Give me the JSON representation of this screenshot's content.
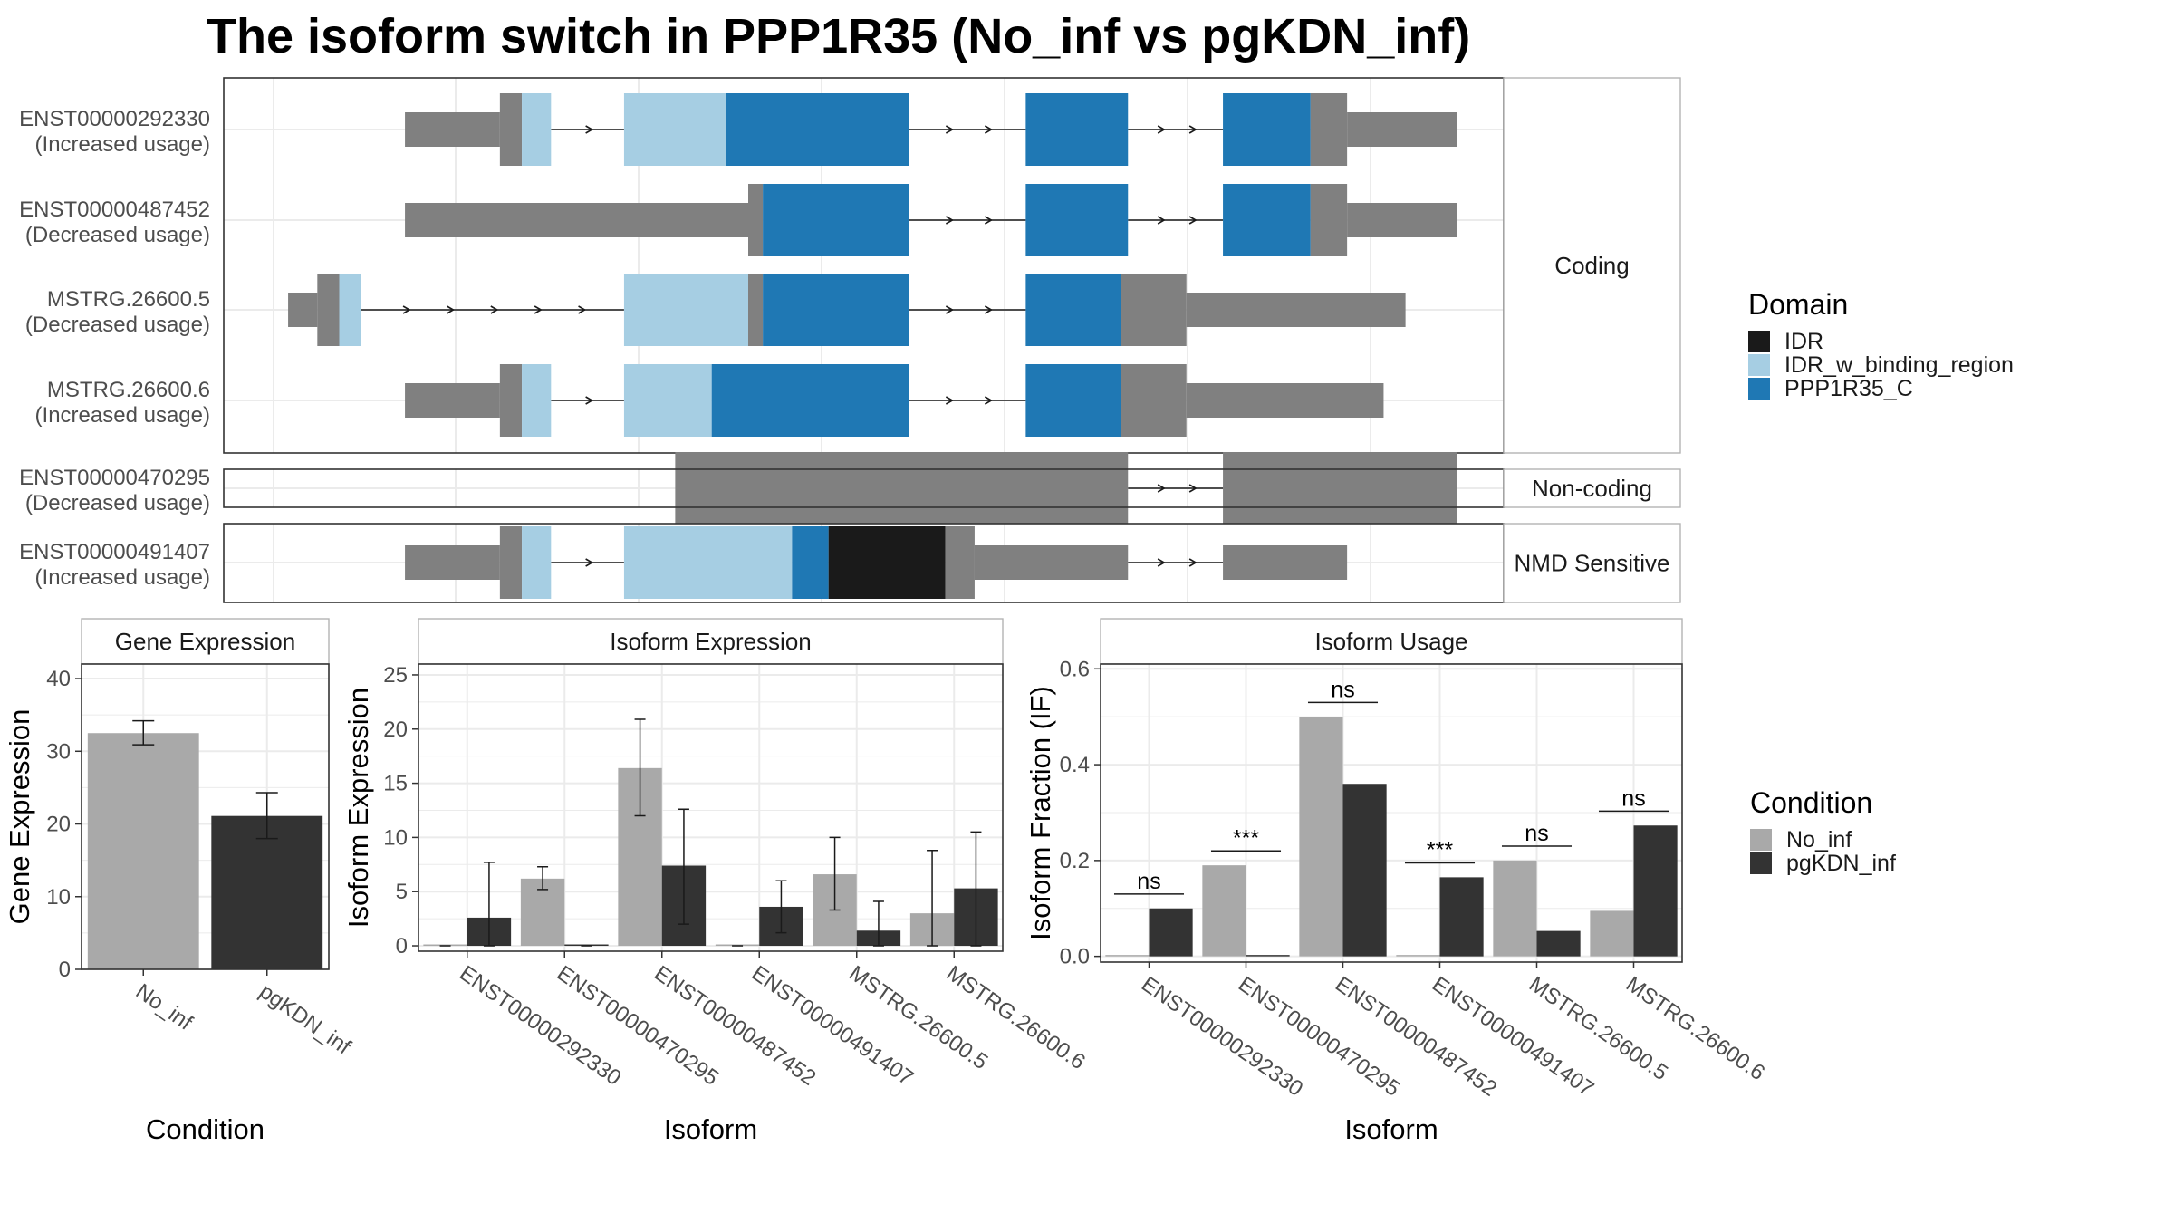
{
  "title": "The isoform switch in PPP1R35 (No_inf vs pgKDN_inf)",
  "colors": {
    "IDR": "#1a1a1a",
    "IDR_w_binding_region": "#a6cee3",
    "PPP1R35_C": "#1f78b4",
    "utr_grey": "#808080",
    "No_inf": "#a9a9a9",
    "pgKDN_inf": "#333333",
    "panel_border": "#333333",
    "grid": "#ebebeb"
  },
  "domain_legend": {
    "title": "Domain",
    "items": [
      {
        "label": "IDR",
        "color": "#1a1a1a"
      },
      {
        "label": "IDR_w_binding_region",
        "color": "#a6cee3"
      },
      {
        "label": "PPP1R35_C",
        "color": "#1f78b4"
      }
    ]
  },
  "condition_legend": {
    "title": "Condition",
    "items": [
      {
        "label": "No_inf",
        "color": "#a9a9a9"
      },
      {
        "label": "pgKDN_inf",
        "color": "#333333"
      }
    ]
  },
  "chart_data": [
    {
      "type": "gene-structure",
      "coordinate_range": [
        0,
        1000
      ],
      "groups": [
        {
          "label": "Coding",
          "transcripts": [
            {
              "id": "ENST00000292330",
              "usage": "(Increased usage)",
              "exons": [
                {
                  "start": 170,
                  "end": 370
                },
                {
                  "start": 470,
                  "end": 860
                },
                {
                  "start": 1020,
                  "end": 1160
                },
                {
                  "start": 1290,
                  "end": 1610
                }
              ],
              "segments": [
                {
                  "start": 170,
                  "end": 300,
                  "kind": "utr"
                },
                {
                  "start": 300,
                  "end": 330,
                  "kind": "cds",
                  "domain": null
                },
                {
                  "start": 330,
                  "end": 370,
                  "kind": "cds",
                  "domain": "IDR_w_binding_region"
                },
                {
                  "start": 470,
                  "end": 610,
                  "kind": "cds",
                  "domain": "IDR_w_binding_region"
                },
                {
                  "start": 610,
                  "end": 860,
                  "kind": "cds",
                  "domain": "PPP1R35_C"
                },
                {
                  "start": 1020,
                  "end": 1160,
                  "kind": "cds",
                  "domain": "PPP1R35_C"
                },
                {
                  "start": 1290,
                  "end": 1410,
                  "kind": "cds",
                  "domain": "PPP1R35_C"
                },
                {
                  "start": 1410,
                  "end": 1460,
                  "kind": "cds",
                  "domain": null
                },
                {
                  "start": 1460,
                  "end": 1610,
                  "kind": "utr"
                }
              ]
            },
            {
              "id": "ENST00000487452",
              "usage": "(Decreased usage)",
              "exons": [
                {
                  "start": 170,
                  "end": 860
                },
                {
                  "start": 1020,
                  "end": 1160
                },
                {
                  "start": 1290,
                  "end": 1610
                }
              ],
              "segments": [
                {
                  "start": 170,
                  "end": 640,
                  "kind": "utr"
                },
                {
                  "start": 640,
                  "end": 660,
                  "kind": "cds",
                  "domain": null
                },
                {
                  "start": 660,
                  "end": 860,
                  "kind": "cds",
                  "domain": "PPP1R35_C"
                },
                {
                  "start": 1020,
                  "end": 1160,
                  "kind": "cds",
                  "domain": "PPP1R35_C"
                },
                {
                  "start": 1290,
                  "end": 1410,
                  "kind": "cds",
                  "domain": "PPP1R35_C"
                },
                {
                  "start": 1410,
                  "end": 1460,
                  "kind": "cds",
                  "domain": null
                },
                {
                  "start": 1460,
                  "end": 1610,
                  "kind": "utr"
                }
              ]
            },
            {
              "id": "MSTRG.26600.5",
              "usage": "(Decreased usage)",
              "exons": [
                {
                  "start": 10,
                  "end": 110
                },
                {
                  "start": 470,
                  "end": 860
                },
                {
                  "start": 1020,
                  "end": 1540
                }
              ],
              "segments": [
                {
                  "start": 10,
                  "end": 50,
                  "kind": "utr"
                },
                {
                  "start": 50,
                  "end": 80,
                  "kind": "cds",
                  "domain": null
                },
                {
                  "start": 80,
                  "end": 110,
                  "kind": "cds",
                  "domain": "IDR_w_binding_region"
                },
                {
                  "start": 470,
                  "end": 640,
                  "kind": "cds",
                  "domain": "IDR_w_binding_region"
                },
                {
                  "start": 640,
                  "end": 660,
                  "kind": "cds",
                  "domain": null
                },
                {
                  "start": 660,
                  "end": 860,
                  "kind": "cds",
                  "domain": "PPP1R35_C"
                },
                {
                  "start": 1020,
                  "end": 1150,
                  "kind": "cds",
                  "domain": "PPP1R35_C"
                },
                {
                  "start": 1150,
                  "end": 1240,
                  "kind": "cds",
                  "domain": null
                },
                {
                  "start": 1240,
                  "end": 1540,
                  "kind": "utr"
                }
              ]
            },
            {
              "id": "MSTRG.26600.6",
              "usage": "(Increased usage)",
              "exons": [
                {
                  "start": 170,
                  "end": 370
                },
                {
                  "start": 470,
                  "end": 860
                },
                {
                  "start": 1020,
                  "end": 1510
                }
              ],
              "segments": [
                {
                  "start": 170,
                  "end": 300,
                  "kind": "utr"
                },
                {
                  "start": 300,
                  "end": 330,
                  "kind": "cds",
                  "domain": null
                },
                {
                  "start": 330,
                  "end": 370,
                  "kind": "cds",
                  "domain": "IDR_w_binding_region"
                },
                {
                  "start": 470,
                  "end": 590,
                  "kind": "cds",
                  "domain": "IDR_w_binding_region"
                },
                {
                  "start": 590,
                  "end": 860,
                  "kind": "cds",
                  "domain": "PPP1R35_C"
                },
                {
                  "start": 1020,
                  "end": 1150,
                  "kind": "cds",
                  "domain": "PPP1R35_C"
                },
                {
                  "start": 1150,
                  "end": 1240,
                  "kind": "cds",
                  "domain": null
                },
                {
                  "start": 1240,
                  "end": 1510,
                  "kind": "utr"
                }
              ]
            }
          ]
        },
        {
          "label": "Non-coding",
          "transcripts": [
            {
              "id": "ENST00000470295",
              "usage": "(Decreased usage)",
              "exons": [
                {
                  "start": 540,
                  "end": 1160
                },
                {
                  "start": 1290,
                  "end": 1610
                }
              ],
              "segments": [
                {
                  "start": 540,
                  "end": 1160,
                  "kind": "cds",
                  "domain": null
                },
                {
                  "start": 1290,
                  "end": 1610,
                  "kind": "cds",
                  "domain": null
                }
              ]
            }
          ]
        },
        {
          "label": "NMD Sensitive",
          "transcripts": [
            {
              "id": "ENST00000491407",
              "usage": "(Increased usage)",
              "exons": [
                {
                  "start": 170,
                  "end": 370
                },
                {
                  "start": 470,
                  "end": 1160
                },
                {
                  "start": 1290,
                  "end": 1460
                }
              ],
              "segments": [
                {
                  "start": 170,
                  "end": 300,
                  "kind": "utr"
                },
                {
                  "start": 300,
                  "end": 330,
                  "kind": "cds",
                  "domain": null
                },
                {
                  "start": 330,
                  "end": 370,
                  "kind": "cds",
                  "domain": "IDR_w_binding_region"
                },
                {
                  "start": 470,
                  "end": 700,
                  "kind": "cds",
                  "domain": "IDR_w_binding_region"
                },
                {
                  "start": 700,
                  "end": 750,
                  "kind": "cds",
                  "domain": "PPP1R35_C"
                },
                {
                  "start": 750,
                  "end": 910,
                  "kind": "cds",
                  "domain": "IDR"
                },
                {
                  "start": 910,
                  "end": 950,
                  "kind": "cds",
                  "domain": null
                },
                {
                  "start": 950,
                  "end": 1160,
                  "kind": "utr"
                },
                {
                  "start": 1290,
                  "end": 1460,
                  "kind": "utr"
                }
              ]
            }
          ]
        }
      ]
    },
    {
      "type": "bar",
      "strip": "Gene Expression",
      "xlabel": "Condition",
      "ylabel": "Gene Expression",
      "ylim": [
        0,
        42
      ],
      "yticks": [
        0,
        10,
        20,
        30,
        40
      ],
      "categories": [
        "No_inf",
        "pgKDN_inf"
      ],
      "values": [
        32.5,
        21.1
      ],
      "err_low": [
        30.9,
        18.0
      ],
      "err_high": [
        34.2,
        24.3
      ]
    },
    {
      "type": "bar",
      "strip": "Isoform Expression",
      "xlabel": "Isoform",
      "ylabel": "Isoform Expression",
      "ylim": [
        -0.5,
        26
      ],
      "yticks": [
        0,
        5,
        10,
        15,
        20,
        25
      ],
      "categories": [
        "ENST00000292330",
        "ENST00000470295",
        "ENST00000487452",
        "ENST00000491407",
        "MSTRG.26600.5",
        "MSTRG.26600.6"
      ],
      "series": [
        {
          "name": "No_inf",
          "values": [
            0,
            6.2,
            16.4,
            0,
            6.6,
            3.0
          ],
          "err_low": [
            0,
            5.2,
            12.0,
            0,
            3.3,
            0
          ],
          "err_high": [
            0,
            7.3,
            20.9,
            0,
            10.0,
            8.8
          ]
        },
        {
          "name": "pgKDN_inf",
          "values": [
            2.6,
            0,
            7.4,
            3.6,
            1.4,
            5.3
          ],
          "err_low": [
            0,
            0,
            2.0,
            1.2,
            0,
            0
          ],
          "err_high": [
            7.7,
            0,
            12.6,
            6.0,
            4.1,
            10.5
          ]
        }
      ]
    },
    {
      "type": "bar",
      "strip": "Isoform Usage",
      "xlabel": "Isoform",
      "ylabel": "Isoform Fraction (IF)",
      "ylim": [
        -0.012,
        0.61
      ],
      "yticks": [
        0.0,
        0.2,
        0.4,
        0.6
      ],
      "ytick_labels": [
        "0.0",
        "0.2",
        "0.4",
        "0.6"
      ],
      "categories": [
        "ENST00000292330",
        "ENST00000470295",
        "ENST00000487452",
        "ENST00000491407",
        "MSTRG.26600.5",
        "MSTRG.26600.6"
      ],
      "series": [
        {
          "name": "No_inf",
          "values": [
            0,
            0.19,
            0.5,
            0,
            0.2,
            0.095
          ]
        },
        {
          "name": "pgKDN_inf",
          "values": [
            0.1,
            0,
            0.36,
            0.165,
            0.053,
            0.273
          ]
        }
      ],
      "significance": [
        "ns",
        "***",
        "ns",
        "***",
        "ns",
        "ns"
      ],
      "sig_y": [
        0.13,
        0.22,
        0.53,
        0.195,
        0.23,
        0.303
      ]
    }
  ]
}
